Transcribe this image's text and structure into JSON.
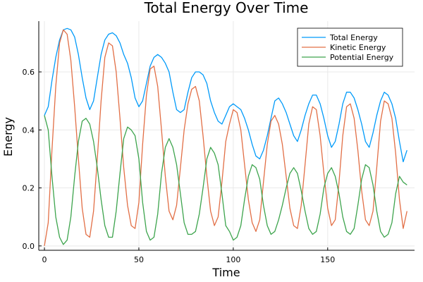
{
  "chart_data": {
    "type": "line",
    "title": "Total Energy Over Time",
    "xlabel": "Time",
    "ylabel": "Energy",
    "xlim": [
      -3,
      196
    ],
    "ylim": [
      -0.015,
      0.775
    ],
    "xticks": [
      0,
      50,
      100,
      150
    ],
    "xtick_labels": [
      "0",
      "50",
      "100",
      "150"
    ],
    "yticks": [
      0.0,
      0.2,
      0.4,
      0.6
    ],
    "ytick_labels": [
      "0.0",
      "0.2",
      "0.4",
      "0.6"
    ],
    "grid": true,
    "legend_position": "top-right",
    "series": [
      {
        "name": "Total Energy",
        "color": "#009AF9",
        "x": [
          0,
          2,
          4,
          6,
          8,
          10,
          12,
          14,
          16,
          18,
          20,
          22,
          24,
          26,
          28,
          30,
          32,
          34,
          36,
          38,
          40,
          42,
          44,
          46,
          48,
          50,
          52,
          54,
          56,
          58,
          60,
          62,
          64,
          66,
          68,
          70,
          72,
          74,
          76,
          78,
          80,
          82,
          84,
          86,
          88,
          90,
          92,
          94,
          96,
          98,
          100,
          102,
          104,
          106,
          108,
          110,
          112,
          114,
          116,
          118,
          120,
          122,
          124,
          126,
          128,
          130,
          132,
          134,
          136,
          138,
          140,
          142,
          144,
          146,
          148,
          150,
          152,
          154,
          156,
          158,
          160,
          162,
          164,
          166,
          168,
          170,
          172,
          174,
          176,
          178,
          180,
          182,
          184,
          186,
          188,
          190,
          192
        ],
        "values": [
          0.45,
          0.48,
          0.57,
          0.65,
          0.71,
          0.745,
          0.75,
          0.745,
          0.72,
          0.66,
          0.58,
          0.51,
          0.47,
          0.5,
          0.58,
          0.66,
          0.71,
          0.73,
          0.735,
          0.725,
          0.7,
          0.66,
          0.63,
          0.58,
          0.51,
          0.48,
          0.5,
          0.56,
          0.62,
          0.65,
          0.66,
          0.65,
          0.63,
          0.6,
          0.53,
          0.47,
          0.46,
          0.47,
          0.53,
          0.58,
          0.6,
          0.6,
          0.59,
          0.56,
          0.5,
          0.46,
          0.43,
          0.42,
          0.45,
          0.48,
          0.49,
          0.48,
          0.47,
          0.44,
          0.4,
          0.35,
          0.31,
          0.3,
          0.33,
          0.38,
          0.44,
          0.5,
          0.51,
          0.49,
          0.46,
          0.42,
          0.38,
          0.36,
          0.4,
          0.45,
          0.49,
          0.52,
          0.52,
          0.49,
          0.44,
          0.38,
          0.34,
          0.36,
          0.42,
          0.49,
          0.53,
          0.53,
          0.51,
          0.47,
          0.42,
          0.36,
          0.34,
          0.39,
          0.45,
          0.5,
          0.53,
          0.52,
          0.49,
          0.44,
          0.36,
          0.29,
          0.33
        ]
      },
      {
        "name": "Kinetic Energy",
        "color": "#E26F46",
        "x": [
          0,
          2,
          4,
          6,
          8,
          10,
          12,
          14,
          16,
          18,
          20,
          22,
          24,
          26,
          28,
          30,
          32,
          34,
          36,
          38,
          40,
          42,
          44,
          46,
          48,
          50,
          52,
          54,
          56,
          58,
          60,
          62,
          64,
          66,
          68,
          70,
          72,
          74,
          76,
          78,
          80,
          82,
          84,
          86,
          88,
          90,
          92,
          94,
          96,
          98,
          100,
          102,
          104,
          106,
          108,
          110,
          112,
          114,
          116,
          118,
          120,
          122,
          124,
          126,
          128,
          130,
          132,
          134,
          136,
          138,
          140,
          142,
          144,
          146,
          148,
          150,
          152,
          154,
          156,
          158,
          160,
          162,
          164,
          166,
          168,
          170,
          172,
          174,
          176,
          178,
          180,
          182,
          184,
          186,
          188,
          190,
          192
        ],
        "values": [
          0.0,
          0.08,
          0.33,
          0.55,
          0.7,
          0.745,
          0.73,
          0.64,
          0.48,
          0.3,
          0.13,
          0.04,
          0.03,
          0.12,
          0.3,
          0.5,
          0.65,
          0.7,
          0.69,
          0.6,
          0.44,
          0.27,
          0.14,
          0.07,
          0.06,
          0.15,
          0.35,
          0.52,
          0.61,
          0.62,
          0.55,
          0.4,
          0.24,
          0.12,
          0.09,
          0.14,
          0.27,
          0.4,
          0.49,
          0.54,
          0.55,
          0.5,
          0.38,
          0.24,
          0.12,
          0.07,
          0.1,
          0.22,
          0.36,
          0.42,
          0.47,
          0.46,
          0.4,
          0.28,
          0.16,
          0.08,
          0.05,
          0.09,
          0.22,
          0.35,
          0.43,
          0.45,
          0.42,
          0.35,
          0.24,
          0.13,
          0.07,
          0.06,
          0.14,
          0.28,
          0.42,
          0.48,
          0.47,
          0.38,
          0.25,
          0.13,
          0.07,
          0.09,
          0.22,
          0.38,
          0.48,
          0.49,
          0.44,
          0.33,
          0.19,
          0.09,
          0.07,
          0.12,
          0.27,
          0.43,
          0.5,
          0.49,
          0.44,
          0.32,
          0.16,
          0.06,
          0.12
        ]
      },
      {
        "name": "Potential Energy",
        "color": "#3DA44D",
        "x": [
          0,
          2,
          4,
          6,
          8,
          10,
          12,
          14,
          16,
          18,
          20,
          22,
          24,
          26,
          28,
          30,
          32,
          34,
          36,
          38,
          40,
          42,
          44,
          46,
          48,
          50,
          52,
          54,
          56,
          58,
          60,
          62,
          64,
          66,
          68,
          70,
          72,
          74,
          76,
          78,
          80,
          82,
          84,
          86,
          88,
          90,
          92,
          94,
          96,
          98,
          100,
          102,
          104,
          106,
          108,
          110,
          112,
          114,
          116,
          118,
          120,
          122,
          124,
          126,
          128,
          130,
          132,
          134,
          136,
          138,
          140,
          142,
          144,
          146,
          148,
          150,
          152,
          154,
          156,
          158,
          160,
          162,
          164,
          166,
          168,
          170,
          172,
          174,
          176,
          178,
          180,
          182,
          184,
          186,
          188,
          190,
          192
        ],
        "values": [
          0.45,
          0.4,
          0.24,
          0.1,
          0.03,
          0.005,
          0.02,
          0.1,
          0.24,
          0.36,
          0.43,
          0.44,
          0.42,
          0.36,
          0.27,
          0.16,
          0.07,
          0.03,
          0.03,
          0.12,
          0.25,
          0.37,
          0.41,
          0.4,
          0.38,
          0.3,
          0.15,
          0.05,
          0.02,
          0.03,
          0.11,
          0.25,
          0.34,
          0.37,
          0.34,
          0.28,
          0.18,
          0.08,
          0.04,
          0.04,
          0.05,
          0.11,
          0.2,
          0.3,
          0.34,
          0.32,
          0.28,
          0.18,
          0.07,
          0.05,
          0.02,
          0.03,
          0.07,
          0.16,
          0.24,
          0.28,
          0.27,
          0.23,
          0.14,
          0.07,
          0.04,
          0.05,
          0.09,
          0.14,
          0.2,
          0.25,
          0.27,
          0.25,
          0.19,
          0.12,
          0.06,
          0.04,
          0.05,
          0.11,
          0.2,
          0.25,
          0.27,
          0.24,
          0.18,
          0.1,
          0.05,
          0.04,
          0.06,
          0.14,
          0.23,
          0.28,
          0.27,
          0.21,
          0.12,
          0.05,
          0.03,
          0.04,
          0.08,
          0.18,
          0.24,
          0.22,
          0.21
        ]
      }
    ]
  }
}
